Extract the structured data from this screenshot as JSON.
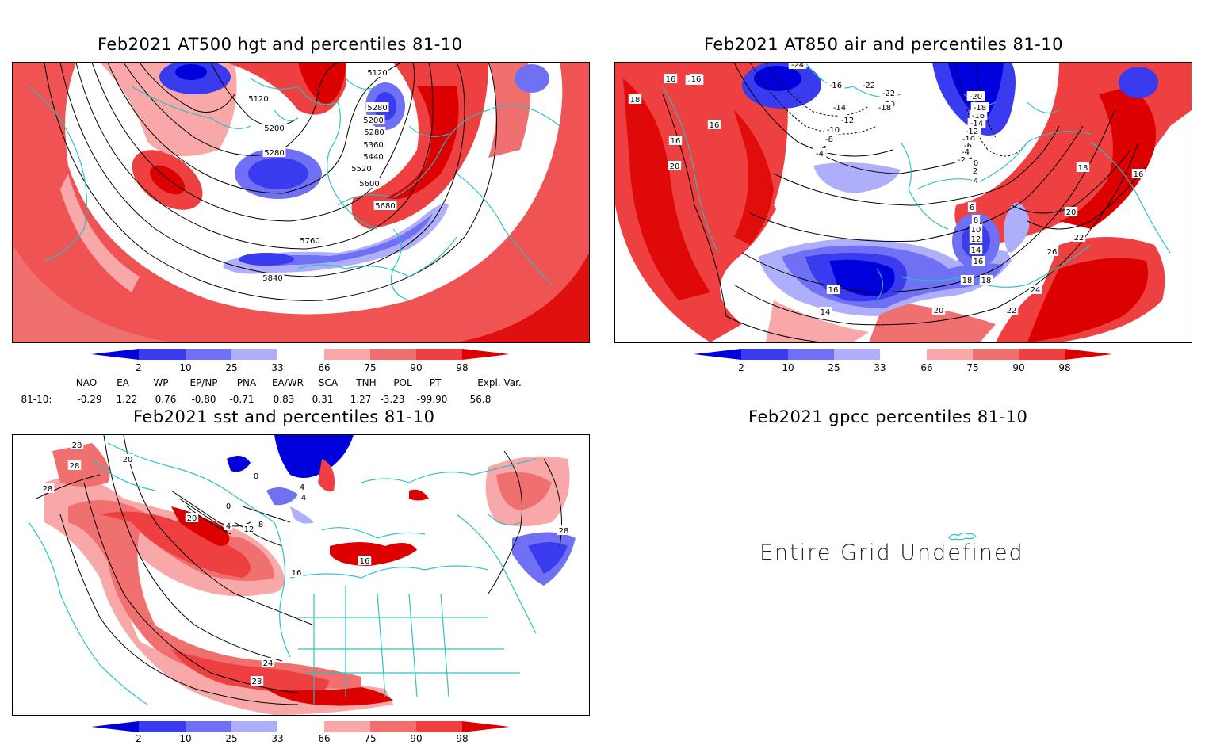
{
  "colors": {
    "coast": "#22c1c1",
    "blue_strong": "#0000dd",
    "blue_mid": "#3a3aee",
    "blue_light": "#7070f5",
    "blue_pale": "#aeaefa",
    "red_pale": "#f8a8a8",
    "red_light": "#f07070",
    "red_mid": "#ee4040",
    "red_strong": "#dd0000"
  },
  "panels": {
    "hgt": {
      "title": "Feb2021 AT500 hgt and percentiles 81-10",
      "contour_labels": [
        "5120",
        "5120",
        "5200",
        "5280",
        "5200",
        "5280",
        "5360",
        "5440",
        "5520",
        "5280",
        "5600",
        "5680",
        "5760",
        "5840"
      ]
    },
    "air": {
      "title": "Feb2021 AT850 air and percentiles 81-10",
      "contour_labels": [
        "-24",
        "-22",
        "-16",
        "-22",
        "-22",
        "-20",
        "-18",
        "-14",
        "-12",
        "-10",
        "-8",
        "-6",
        "-4",
        "-20",
        "-18",
        "-16",
        "-14",
        "-12",
        "-10",
        "-6",
        "-4",
        "-2",
        "0",
        "2",
        "4",
        "6",
        "8",
        "10",
        "12",
        "14",
        "16",
        "18",
        "20",
        "22",
        "26",
        "24",
        "22",
        "20",
        "18",
        "16",
        "14",
        "16",
        "16",
        "16",
        "20",
        "18",
        "16",
        "18",
        "16"
      ]
    },
    "sst": {
      "title": "Feb2021 sst and percentiles 81-10",
      "contour_labels": [
        "28",
        "28",
        "20",
        "28",
        "0",
        "4",
        "4",
        "0",
        "20",
        "4",
        "12",
        "8",
        "16",
        "24",
        "28",
        "16",
        "28"
      ]
    },
    "gpcc": {
      "title": "Feb2021 gpcc percentiles 81-10",
      "message": "Entire Grid Undefined"
    }
  },
  "colorbar": {
    "labels": [
      "2",
      "10",
      "25",
      "33",
      "66",
      "75",
      "90",
      "98"
    ]
  },
  "indices": {
    "headers": [
      "NAO",
      "EA",
      "WP",
      "EP/NP",
      "PNA",
      "EA/WR",
      "SCA",
      "TNH",
      "POL",
      "PT",
      "Expl. Var."
    ],
    "row_label": "81-10:",
    "values": [
      "-0.29",
      "1.22",
      "0.76",
      "-0.80",
      "-0.71",
      "0.83",
      "0.31",
      "1.27",
      "-3.23",
      "-99.90",
      "56.8"
    ]
  }
}
